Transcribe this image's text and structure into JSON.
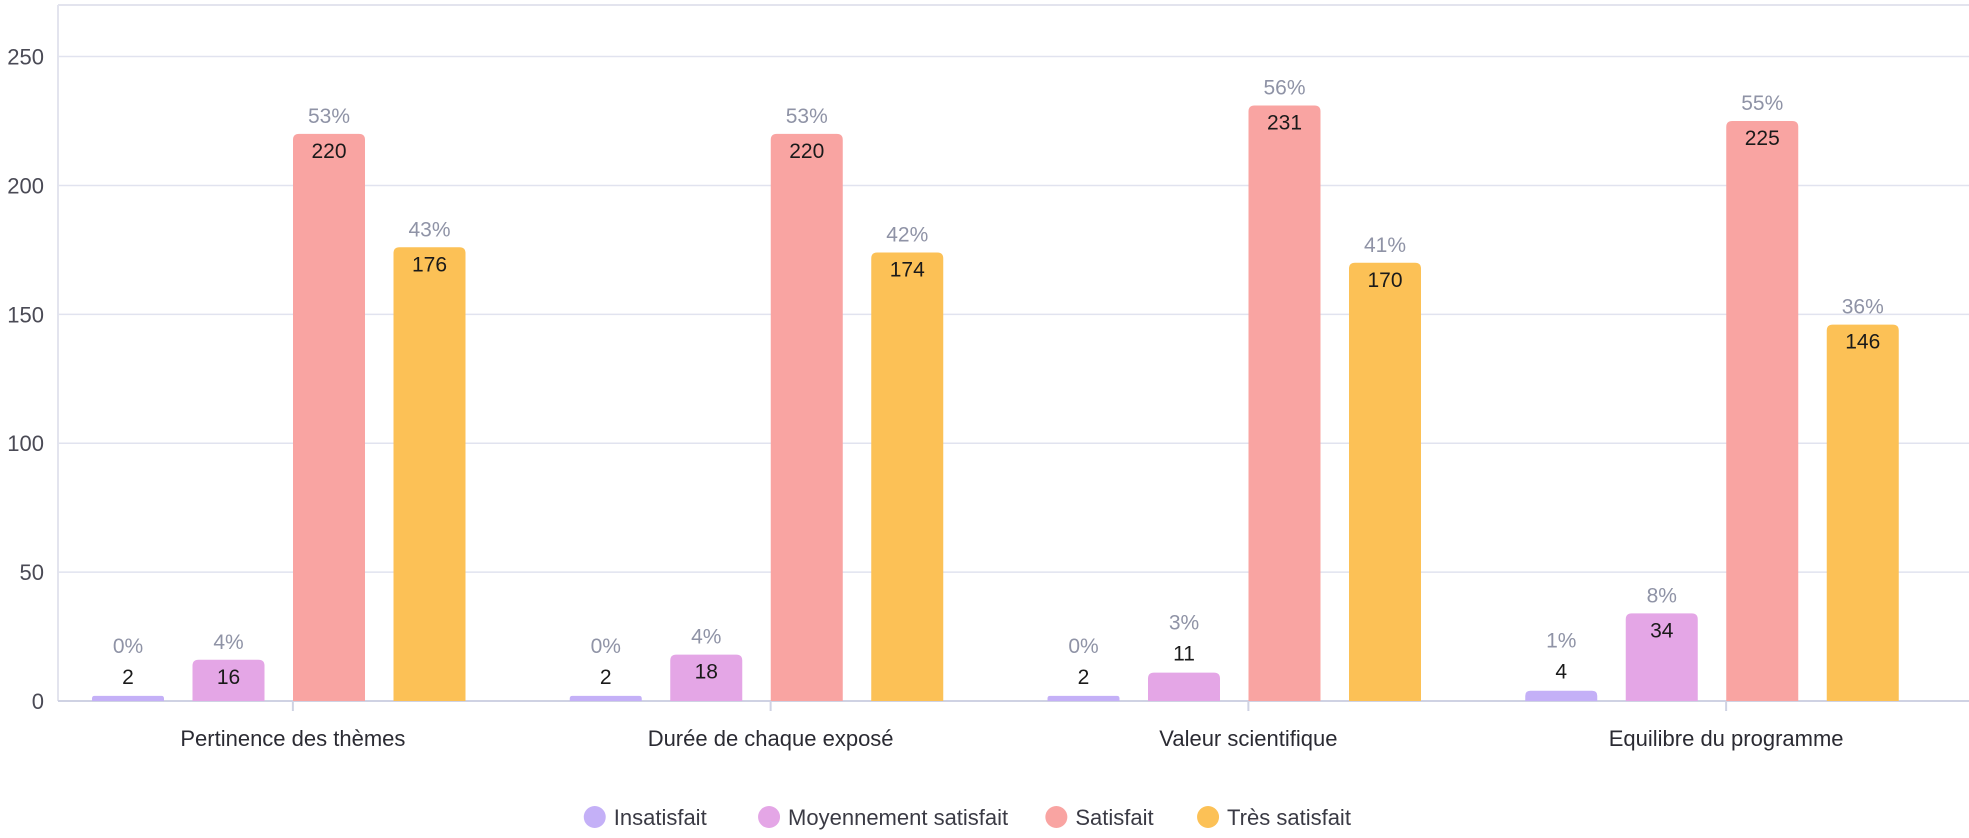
{
  "chart_data": {
    "type": "bar",
    "title": "",
    "xlabel": "",
    "ylabel": "",
    "ylim": [
      0,
      270
    ],
    "y_ticks": [
      0,
      50,
      100,
      150,
      200,
      250
    ],
    "grid": true,
    "legend_position": "bottom",
    "categories": [
      "Pertinence des thèmes",
      "Durée de chaque exposé",
      "Valeur scientifique",
      "Equilibre du programme"
    ],
    "series": [
      {
        "name": "Insatisfait",
        "color": "#c4b0f7",
        "values": [
          2,
          2,
          2,
          4
        ],
        "percent_labels": [
          "0%",
          "0%",
          "0%",
          "1%"
        ]
      },
      {
        "name": "Moyennement satisfait",
        "color": "#e4a6e6",
        "values": [
          16,
          18,
          11,
          34
        ],
        "percent_labels": [
          "4%",
          "4%",
          "3%",
          "8%"
        ]
      },
      {
        "name": "Satisfait",
        "color": "#f9a4a2",
        "values": [
          220,
          220,
          231,
          225
        ],
        "percent_labels": [
          "53%",
          "53%",
          "56%",
          "55%"
        ]
      },
      {
        "name": "Très satisfait",
        "color": "#fcc156",
        "values": [
          176,
          174,
          170,
          146
        ],
        "percent_labels": [
          "43%",
          "42%",
          "41%",
          "36%"
        ]
      }
    ]
  }
}
